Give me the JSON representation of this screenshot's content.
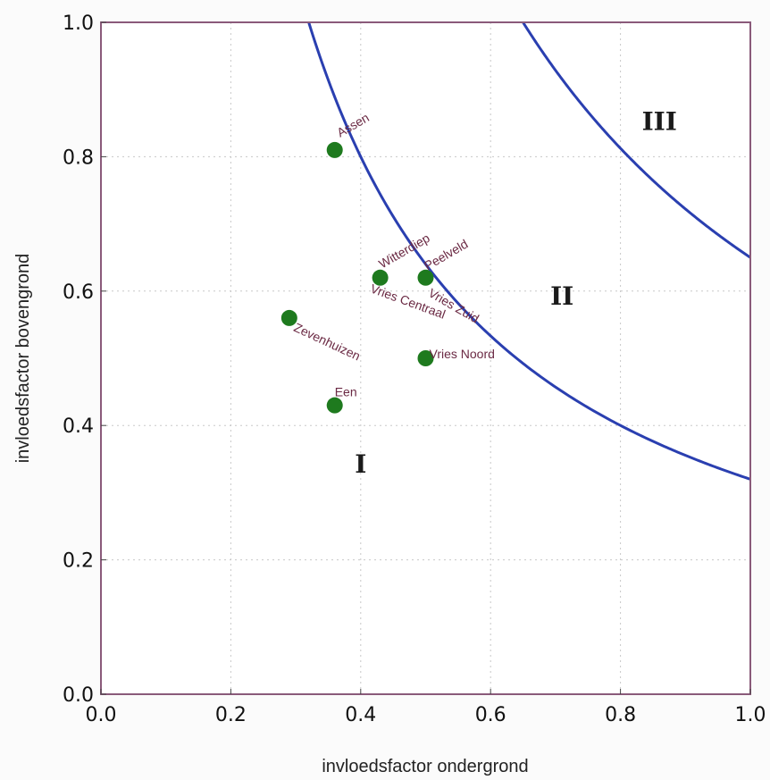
{
  "chart_data": {
    "type": "scatter",
    "xlabel": "invloedsfactor ondergrond",
    "ylabel": "invloedsfactor bovengrond",
    "xlim": [
      0.0,
      1.0
    ],
    "ylim": [
      0.0,
      1.0
    ],
    "x_ticks": [
      "0.0",
      "0.2",
      "0.4",
      "0.6",
      "0.8",
      "1.0"
    ],
    "y_ticks": [
      "0.0",
      "0.2",
      "0.4",
      "0.6",
      "0.8",
      "1.0"
    ],
    "grid": true,
    "points": [
      {
        "label": "Assen",
        "x": 0.36,
        "y": 0.81
      },
      {
        "label": "Witterdiep",
        "x": 0.43,
        "y": 0.62
      },
      {
        "label": "Peelveld",
        "x": 0.5,
        "y": 0.62
      },
      {
        "label": "Vries Zuid",
        "x": 0.5,
        "y": 0.62
      },
      {
        "label": "Vries Centraal",
        "x": 0.43,
        "y": 0.62
      },
      {
        "label": "Zevenhuizen",
        "x": 0.29,
        "y": 0.56
      },
      {
        "label": "Vries Noord",
        "x": 0.5,
        "y": 0.5
      },
      {
        "label": "Een",
        "x": 0.36,
        "y": 0.43
      }
    ],
    "curves": [
      {
        "name": "boundary I/II",
        "product": 0.32
      },
      {
        "name": "boundary II/III",
        "product": 0.65
      }
    ],
    "regions": [
      "I",
      "II",
      "III"
    ],
    "colors": {
      "points": "#1e7a1e",
      "curves": "#2a3fb0",
      "point_labels": "#6b2a44",
      "frame": "#8a5a7a"
    }
  }
}
